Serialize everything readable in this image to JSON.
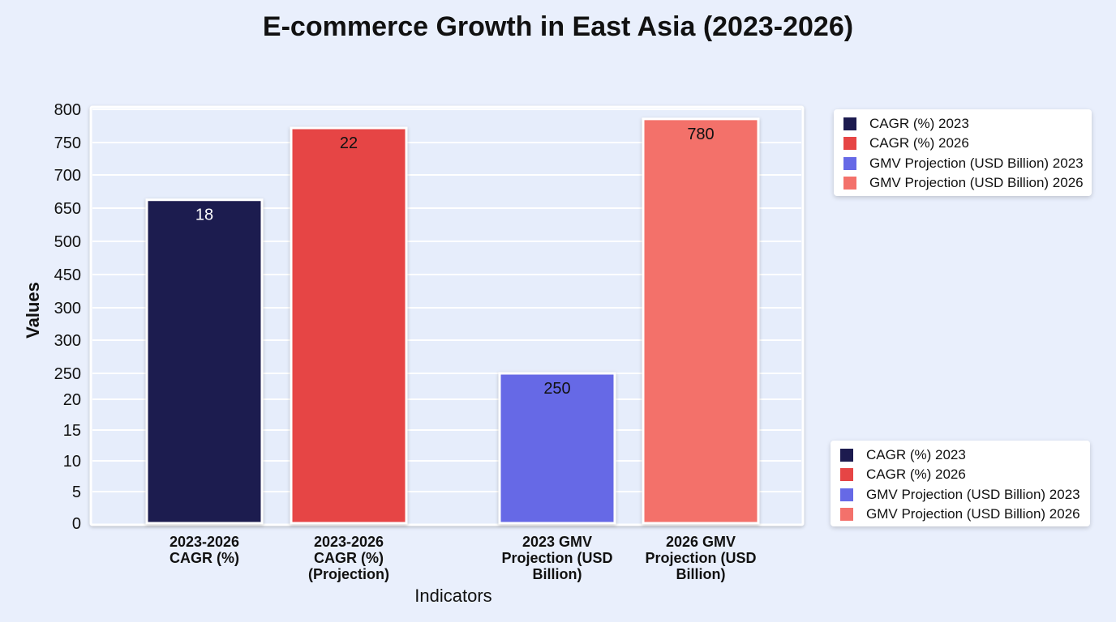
{
  "chart_data": {
    "type": "bar",
    "title": "E-commerce Growth in East Asia (2023-2026)",
    "xlabel": "Indicators",
    "ylabel": "Values",
    "y_tick_labels": [
      "0",
      "5",
      "10",
      "15",
      "20",
      "250",
      "300",
      "300",
      "450",
      "500",
      "650",
      "700",
      "750",
      "800"
    ],
    "grid": true,
    "categories": [
      [
        "2023-2026",
        "CAGR (%)"
      ],
      [
        "2023-2026",
        "CAGR (%)",
        "(Projection)"
      ],
      [
        "2023 GMV",
        "Projection (USD",
        "Billion)"
      ],
      [
        "2026 GMV",
        "Projection (USD",
        "Billion)"
      ]
    ],
    "series": [
      {
        "name": "CAGR (%) 2023",
        "value": 18,
        "data_label": "18",
        "color": "#1c1b4f"
      },
      {
        "name": "CAGR (%) 2026",
        "value": 22,
        "data_label": "22",
        "color": "#e64545"
      },
      {
        "name": "GMV Projection (USD Billion) 2023",
        "value": 250,
        "data_label": "250",
        "color": "#6669e6"
      },
      {
        "name": "GMV Projection (USD Billion) 2026",
        "value": 780,
        "data_label": "780",
        "color": "#f3716b"
      }
    ],
    "legend": {
      "placement": "right (top and bottom)",
      "entries": [
        "CAGR (%) 2023",
        "CAGR (%) 2026",
        "GMV Projection (USD Billion) 2023",
        "GMV Projection (USD Billion) 2026"
      ]
    }
  }
}
